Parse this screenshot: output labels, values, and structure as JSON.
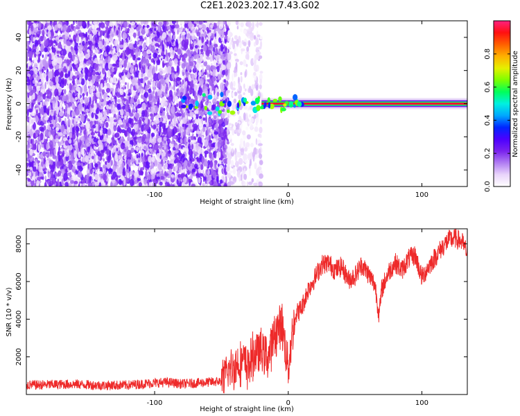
{
  "title": "C2E1.2023.202.17.43.G02",
  "chart_data": [
    {
      "type": "heatmap",
      "xlabel": "Height of straight line (km)",
      "ylabel": "Frequency (Hz)",
      "xlim": [
        -196,
        134
      ],
      "ylim": [
        -50,
        50
      ],
      "xticks": [
        -100,
        0,
        100
      ],
      "yticks": [
        -40,
        -20,
        0,
        20,
        40
      ],
      "colorbar": {
        "label": "Normalized spectral amplitude",
        "range": [
          0,
          1
        ],
        "ticks": [
          "0.0",
          "0.2",
          "0.4",
          "0.6",
          "0.8"
        ],
        "colors": [
          "#ffffff",
          "#e9d4fb",
          "#b07cf2",
          "#7a22ee",
          "#4c00ff",
          "#0026ff",
          "#00a8ff",
          "#00f0e0",
          "#00ff5a",
          "#7cff00",
          "#e6f000",
          "#ffb000",
          "#ff6000",
          "#ff1010",
          "#ff2080"
        ]
      },
      "features": [
        {
          "name": "noise",
          "x_range": [
            -196,
            -45
          ],
          "freq_range": [
            -50,
            50
          ],
          "amplitude": 0.15
        },
        {
          "name": "noise-transition",
          "x_range": [
            -45,
            -20
          ],
          "freq_range": [
            -50,
            50
          ],
          "amplitude": 0.06
        },
        {
          "name": "carrier",
          "x_range": [
            -20,
            134
          ],
          "freq": 0,
          "amplitude": 0.95
        }
      ]
    },
    {
      "type": "line",
      "xlabel": "Height of straight line (km)",
      "ylabel": "SNR (10 * v/v)",
      "xlim": [
        -196,
        134
      ],
      "ylim": [
        0,
        8800
      ],
      "xticks": [
        -100,
        0,
        100
      ],
      "yticks": [
        2000,
        4000,
        6000,
        8000
      ],
      "color": "#ee2a2a",
      "x": [
        -196,
        -180,
        -160,
        -140,
        -120,
        -100,
        -90,
        -80,
        -70,
        -60,
        -50,
        -45,
        -40,
        -35,
        -30,
        -25,
        -20,
        -15,
        -10,
        -5,
        0,
        5,
        10,
        15,
        20,
        25,
        30,
        35,
        40,
        45,
        50,
        55,
        60,
        65,
        68,
        70,
        75,
        80,
        85,
        90,
        95,
        100,
        105,
        110,
        115,
        120,
        125,
        130,
        134
      ],
      "y": [
        500,
        520,
        550,
        480,
        500,
        620,
        650,
        560,
        600,
        650,
        700,
        1200,
        1500,
        1800,
        1500,
        2200,
        2300,
        2000,
        3200,
        3800,
        1500,
        4200,
        4600,
        5600,
        6200,
        6900,
        7000,
        6600,
        6800,
        6100,
        6300,
        6900,
        6400,
        5800,
        4200,
        5600,
        6500,
        7000,
        6600,
        7200,
        7400,
        6200,
        6800,
        7300,
        7800,
        8200,
        8300,
        8100,
        7500
      ]
    }
  ]
}
